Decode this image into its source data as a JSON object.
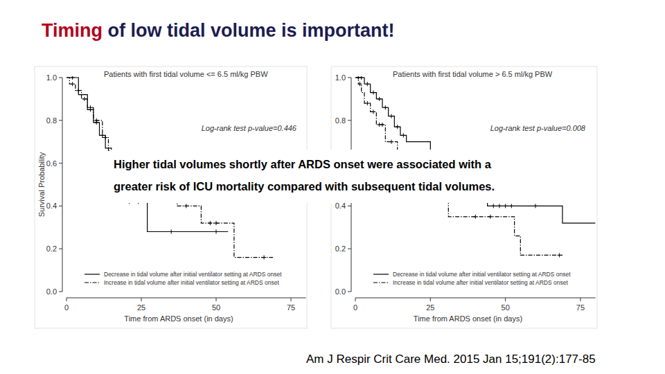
{
  "slide": {
    "title_highlight": "Timing",
    "title_rest": " of low tidal volume is important!",
    "callout_lines": [
      "Higher tidal volumes shortly after ARDS onset were associated with a",
      "greater risk of ICU mortality compared with subsequent tidal volumes."
    ],
    "citation": "Am J Respir Crit Care Med. 2015 Jan 15;191(2):177-85"
  },
  "chart_data": [
    {
      "type": "step",
      "title": "Patients with first tidal volume <= 6.5 ml/kg PBW",
      "annotation": "Log-rank test p-value=0.446",
      "x_label": "Time from ARDS onset (in days)",
      "y_label": "Survival Probability",
      "xlim": [
        0,
        80
      ],
      "ylim": [
        0,
        1.0
      ],
      "xticks": [
        0,
        25,
        50,
        75
      ],
      "yticks": [
        {
          "value": 0,
          "label": "0.0"
        },
        {
          "value": 0.2,
          "label": "0.2"
        },
        {
          "value": 0.4,
          "label": "0.4"
        },
        {
          "value": 0.6,
          "label": "0.6"
        },
        {
          "value": 0.8,
          "label": "0.8"
        },
        {
          "value": 1.0,
          "label": "1.0"
        }
      ],
      "grid": false,
      "legend": "lower left",
      "series": [
        {
          "name": "Decrease in tidal volume after initial ventilator setting at ARDS onset",
          "color": "#000000",
          "line_style": "solid",
          "x": [
            0,
            4,
            7,
            9,
            11,
            13,
            15,
            18,
            27,
            54
          ],
          "values": [
            1.0,
            0.92,
            0.85,
            0.79,
            0.73,
            0.67,
            0.6,
            0.42,
            0.28,
            0.28
          ],
          "censored": [
            2,
            8,
            10,
            12,
            21,
            24,
            35,
            50
          ]
        },
        {
          "name": "Increase in tidal volume after initial ventilator setting at ARDS onset",
          "color": "#000000",
          "line_style": "dashdot",
          "x": [
            0,
            1,
            3,
            5,
            7,
            9,
            12,
            14,
            20,
            37,
            45,
            56,
            69
          ],
          "values": [
            1.0,
            0.97,
            0.94,
            0.9,
            0.86,
            0.8,
            0.72,
            0.66,
            0.55,
            0.4,
            0.32,
            0.16,
            0.16
          ],
          "censored": [
            2,
            4,
            6,
            8,
            10,
            13,
            40,
            48,
            50,
            66
          ]
        }
      ]
    },
    {
      "type": "step",
      "title": "Patients with first tidal volume > 6.5 ml/kg PBW",
      "annotation": "Log-rank test p-value=0.008",
      "x_label": "Time from ARDS onset (in days)",
      "xlim": [
        0,
        80
      ],
      "ylim": [
        0,
        1.0
      ],
      "xticks": [
        0,
        25,
        50,
        75
      ],
      "yticks": [
        {
          "value": 0,
          "label": "0.0"
        },
        {
          "value": 0.2,
          "label": "0.2"
        },
        {
          "value": 0.4,
          "label": "0.4"
        },
        {
          "value": 0.6,
          "label": "0.6"
        },
        {
          "value": 0.8,
          "label": "0.8"
        },
        {
          "value": 1.0,
          "label": "1.0"
        }
      ],
      "grid": false,
      "legend": "lower left",
      "series": [
        {
          "name": "Decrease in tidal volume after initial ventilator setting at ARDS onset",
          "color": "#000000",
          "line_style": "solid",
          "x": [
            0,
            3,
            5,
            7,
            9,
            11,
            13,
            15,
            17,
            25,
            35,
            44,
            69,
            80
          ],
          "values": [
            1.0,
            0.97,
            0.93,
            0.9,
            0.86,
            0.82,
            0.77,
            0.73,
            0.7,
            0.58,
            0.5,
            0.4,
            0.32,
            0.32
          ],
          "censored": [
            1,
            2,
            4,
            6,
            8,
            10,
            12,
            14,
            16,
            46,
            48,
            50,
            52,
            60
          ]
        },
        {
          "name": "Increase in tidal volume after initial ventilator setting at ARDS onset",
          "color": "#000000",
          "line_style": "dashdot",
          "x": [
            0,
            1,
            2,
            3,
            5,
            7,
            10,
            14,
            20,
            30,
            31,
            53,
            55,
            69
          ],
          "values": [
            1.0,
            0.97,
            0.93,
            0.88,
            0.84,
            0.78,
            0.7,
            0.62,
            0.52,
            0.42,
            0.35,
            0.26,
            0.17,
            0.17
          ],
          "censored": [
            1.5,
            4,
            6,
            8,
            9,
            12,
            40,
            45,
            68
          ]
        }
      ]
    }
  ]
}
